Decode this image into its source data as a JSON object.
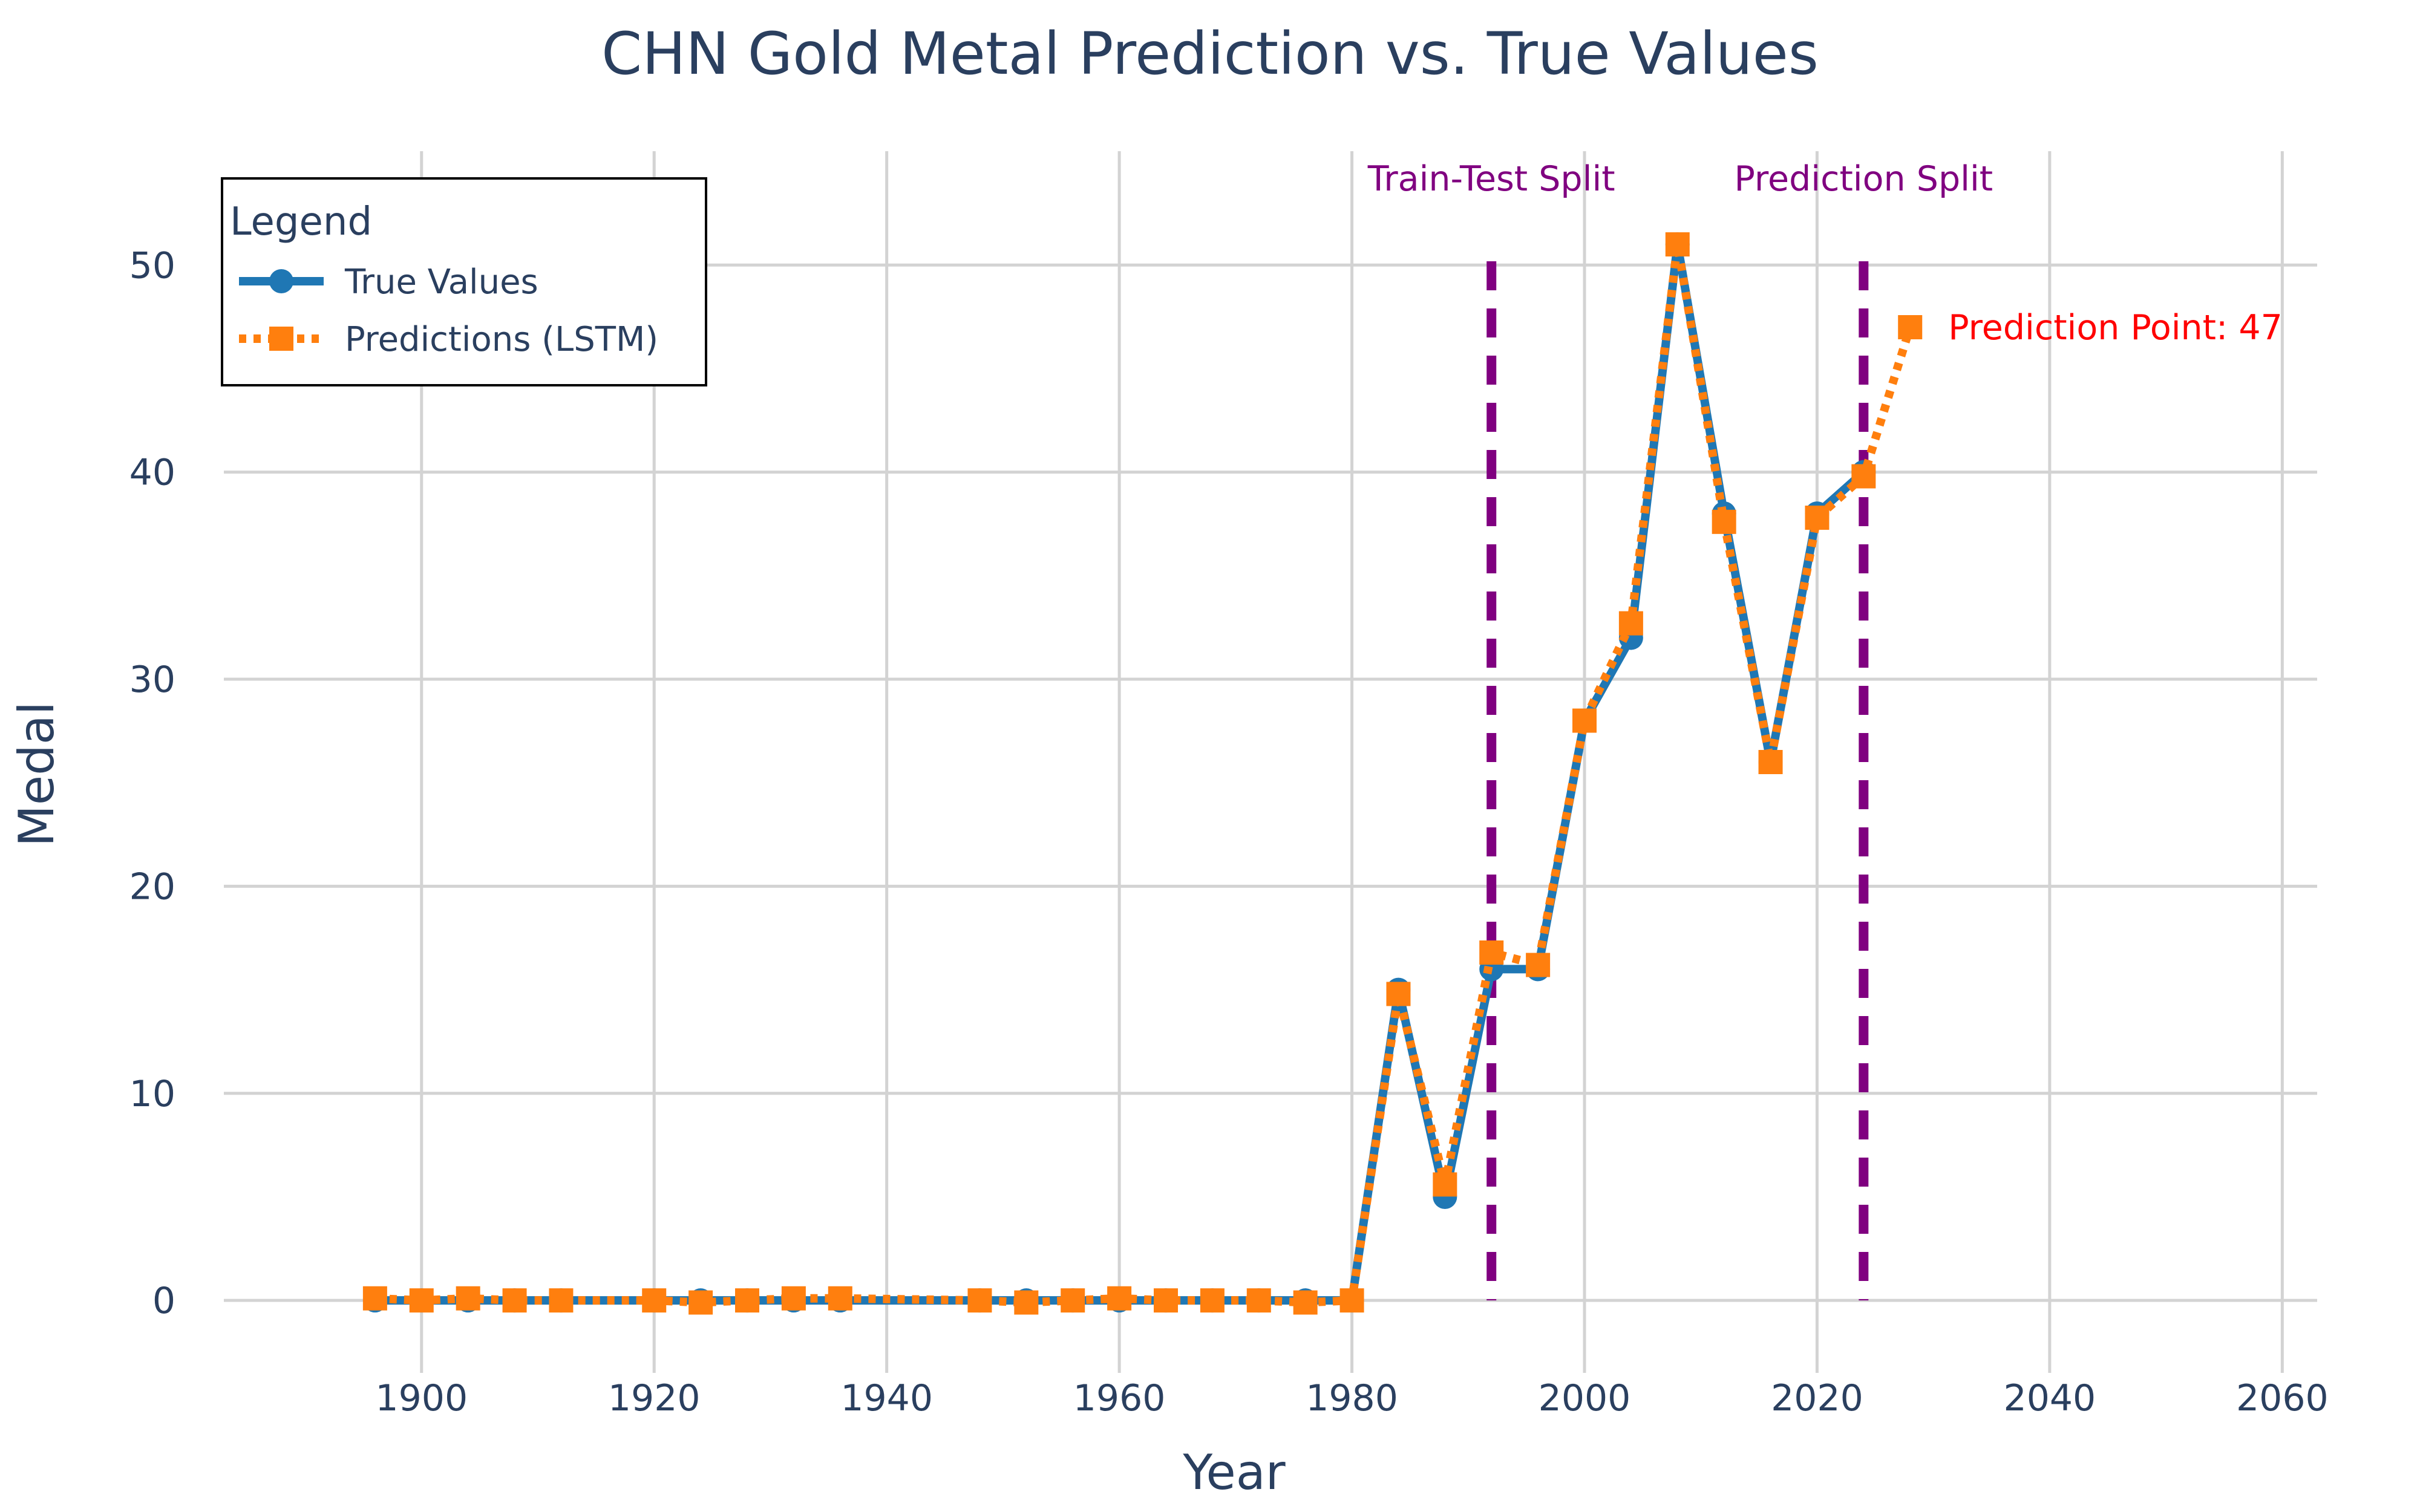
{
  "chart_data": {
    "type": "line",
    "title": "CHN Gold Metal Prediction vs. True Values",
    "xlabel": "Year",
    "ylabel": "Medal",
    "xlim": [
      1883,
      2063
    ],
    "ylim": [
      -3.5,
      55.5
    ],
    "xticks": [
      1900,
      1920,
      1940,
      1960,
      1980,
      2000,
      2020,
      2040,
      2060
    ],
    "yticks": [
      0,
      10,
      20,
      30,
      40,
      50
    ],
    "grid": true,
    "legend": {
      "title": "Legend",
      "placement": "top-left",
      "entries": [
        "True Values",
        "Predictions (LSTM)"
      ]
    },
    "series": [
      {
        "name": "True Values",
        "color": "#1f77b4",
        "style": "solid",
        "marker": "circle",
        "x": [
          1896,
          1900,
          1904,
          1908,
          1912,
          1920,
          1924,
          1928,
          1932,
          1936,
          1948,
          1952,
          1956,
          1960,
          1964,
          1968,
          1972,
          1976,
          1980,
          1984,
          1988,
          1992,
          1996,
          2000,
          2004,
          2008,
          2012,
          2016,
          2020,
          2024
        ],
        "y": [
          0,
          0,
          0,
          0,
          0,
          0,
          0,
          0,
          0,
          0,
          0,
          0,
          0,
          0,
          0,
          0,
          0,
          0,
          0,
          15,
          5,
          16,
          16,
          28,
          32,
          51,
          38,
          26,
          38,
          40
        ]
      },
      {
        "name": "Predictions (LSTM)",
        "color": "#ff7f0e",
        "style": "dotted",
        "marker": "square",
        "x": [
          1896,
          1900,
          1904,
          1908,
          1912,
          1920,
          1924,
          1928,
          1932,
          1936,
          1948,
          1952,
          1956,
          1960,
          1964,
          1968,
          1972,
          1976,
          1980,
          1984,
          1988,
          1992,
          1996,
          2000,
          2004,
          2008,
          2012,
          2016,
          2020,
          2024,
          2028
        ],
        "y": [
          0.1,
          0,
          0.1,
          0,
          0,
          0,
          -0.1,
          0,
          0.1,
          0.1,
          0,
          -0.1,
          0,
          0.1,
          0,
          0,
          0,
          -0.1,
          0,
          14.8,
          5.6,
          16.8,
          16.2,
          28,
          32.7,
          51,
          37.6,
          26,
          37.8,
          39.8,
          47
        ]
      }
    ],
    "vlines": [
      {
        "x": 1992,
        "label": "Train-Test Split",
        "color": "#800080"
      },
      {
        "x": 2024,
        "label": "Prediction Split",
        "color": "#800080"
      }
    ],
    "annotation": {
      "x": 2028,
      "y": 47,
      "text": "Prediction Point: 47",
      "color": "#ff0000"
    }
  }
}
